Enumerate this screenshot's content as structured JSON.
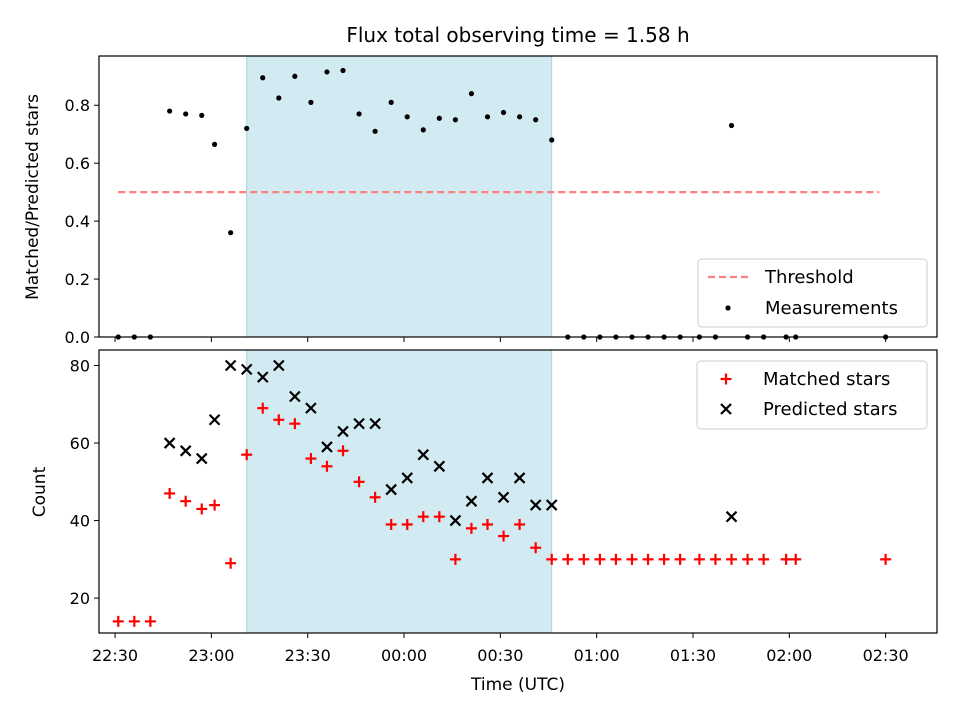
{
  "chart_data": {
    "type": "scatter",
    "title": "Flux total observing time = 1.58 h",
    "xlabel": "Time (UTC)",
    "x_ticks": [
      "22:30",
      "23:00",
      "23:30",
      "00:00",
      "00:30",
      "01:00",
      "01:30",
      "02:00",
      "02:30"
    ],
    "x_range_minutes_from_2230": [
      -5,
      256
    ],
    "shaded_span": {
      "start": "23:11",
      "end": "00:46",
      "color": "#add8e6"
    },
    "panels": [
      {
        "name": "ratio",
        "ylabel": "Matched/Predicted stars",
        "ylim": [
          0,
          0.97
        ],
        "y_ticks": [
          "0.0",
          "0.2",
          "0.4",
          "0.6",
          "0.8"
        ],
        "threshold": {
          "name": "Threshold",
          "value": 0.5,
          "x_start": "22:31",
          "x_end": "02:28",
          "color": "#ff7f7f"
        },
        "series": [
          {
            "name": "Measurements",
            "color": "#000000",
            "marker": "dot",
            "x": [
              "22:31",
              "22:36",
              "22:41",
              "22:47",
              "22:52",
              "22:57",
              "23:01",
              "23:06",
              "23:11",
              "23:16",
              "23:21",
              "23:26",
              "23:31",
              "23:36",
              "23:41",
              "23:46",
              "23:51",
              "23:56",
              "00:01",
              "00:06",
              "00:11",
              "00:16",
              "00:21",
              "00:26",
              "00:31",
              "00:36",
              "00:41",
              "00:46",
              "00:51",
              "00:56",
              "01:01",
              "01:06",
              "01:11",
              "01:16",
              "01:21",
              "01:26",
              "01:32",
              "01:37",
              "01:42",
              "01:47",
              "01:52",
              "01:59",
              "02:02",
              "02:30"
            ],
            "y": [
              0,
              0,
              0,
              0.78,
              0.77,
              0.765,
              0.665,
              0.36,
              0.72,
              0.895,
              0.825,
              0.9,
              0.81,
              0.915,
              0.92,
              0.77,
              0.71,
              0.81,
              0.76,
              0.715,
              0.755,
              0.75,
              0.84,
              0.76,
              0.775,
              0.76,
              0.75,
              0.68,
              0,
              0,
              0,
              0,
              0,
              0,
              0,
              0,
              0,
              0,
              0.73,
              0,
              0,
              0,
              0,
              0
            ]
          }
        ]
      },
      {
        "name": "counts",
        "ylabel": "Count",
        "ylim": [
          11,
          84
        ],
        "y_ticks": [
          "20",
          "40",
          "60",
          "80"
        ],
        "series": [
          {
            "name": "Matched stars",
            "color": "#ff0000",
            "marker": "plus",
            "x": [
              "22:31",
              "22:36",
              "22:41",
              "22:47",
              "22:52",
              "22:57",
              "23:01",
              "23:06",
              "23:11",
              "23:16",
              "23:21",
              "23:26",
              "23:31",
              "23:36",
              "23:41",
              "23:46",
              "23:51",
              "23:56",
              "00:01",
              "00:06",
              "00:11",
              "00:16",
              "00:21",
              "00:26",
              "00:31",
              "00:36",
              "00:41",
              "00:46",
              "00:51",
              "00:56",
              "01:01",
              "01:06",
              "01:11",
              "01:16",
              "01:21",
              "01:26",
              "01:32",
              "01:37",
              "01:42",
              "01:47",
              "01:52",
              "01:59",
              "02:02",
              "02:30"
            ],
            "y": [
              14,
              14,
              14,
              47,
              45,
              43,
              44,
              29,
              57,
              69,
              66,
              65,
              56,
              54,
              58,
              50,
              46,
              39,
              39,
              41,
              41,
              30,
              38,
              39,
              36,
              39,
              33,
              30,
              30,
              30,
              30,
              30,
              30,
              30,
              30,
              30,
              30,
              30,
              30,
              30,
              30,
              30,
              30,
              30
            ]
          },
          {
            "name": "Predicted stars",
            "color": "#000000",
            "marker": "x",
            "x": [
              "22:47",
              "22:52",
              "22:57",
              "23:01",
              "23:06",
              "23:11",
              "23:16",
              "23:21",
              "23:26",
              "23:31",
              "23:36",
              "23:41",
              "23:46",
              "23:51",
              "23:56",
              "00:01",
              "00:06",
              "00:11",
              "00:16",
              "00:21",
              "00:26",
              "00:31",
              "00:36",
              "00:41",
              "00:46",
              "01:42"
            ],
            "y": [
              60,
              58,
              56,
              66,
              80,
              79,
              77,
              80,
              72,
              69,
              59,
              63,
              65,
              65,
              48,
              51,
              57,
              54,
              40,
              45,
              51,
              46,
              51,
              44,
              44,
              41
            ]
          }
        ]
      }
    ]
  }
}
